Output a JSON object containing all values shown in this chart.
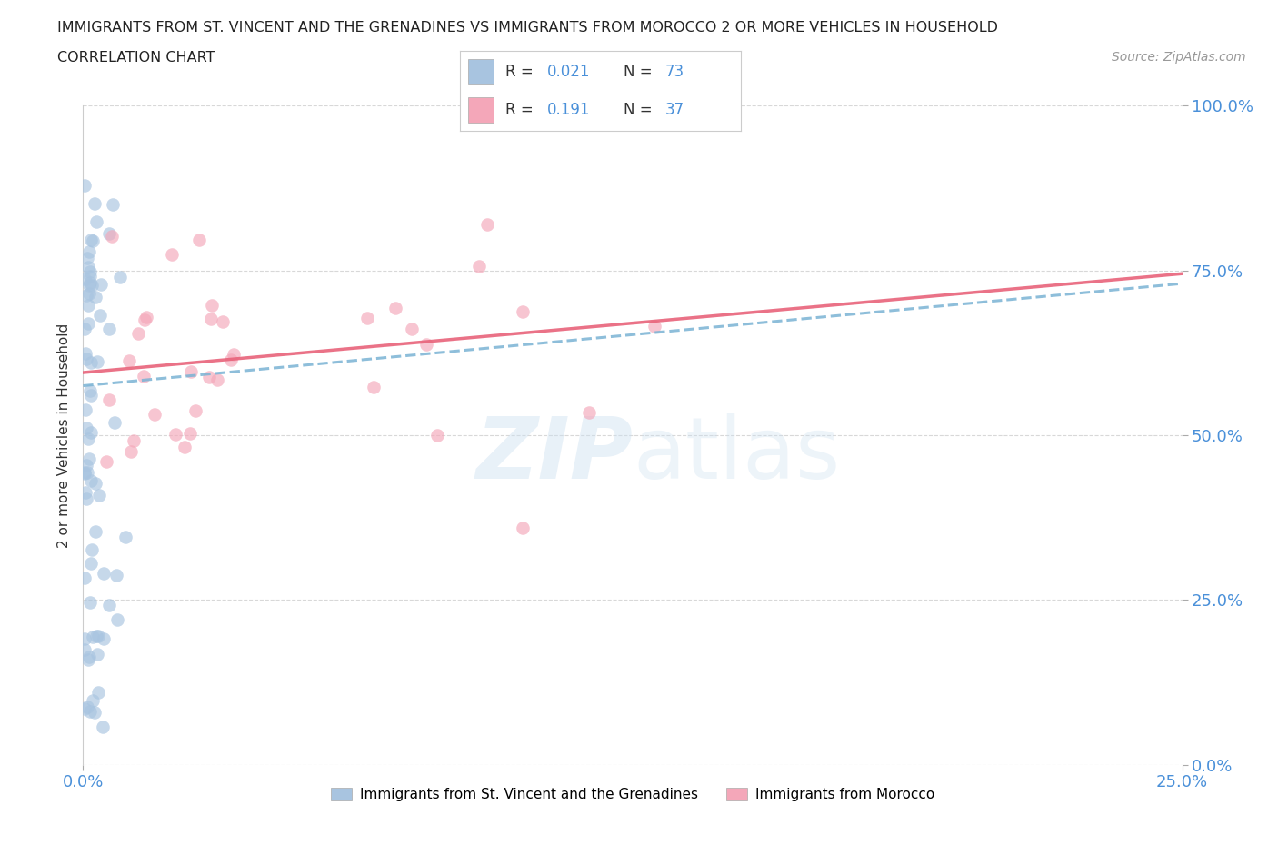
{
  "title_line1": "IMMIGRANTS FROM ST. VINCENT AND THE GRENADINES VS IMMIGRANTS FROM MOROCCO 2 OR MORE VEHICLES IN HOUSEHOLD",
  "title_line2": "CORRELATION CHART",
  "source_text": "Source: ZipAtlas.com",
  "ylabel": "2 or more Vehicles in Household",
  "xlim": [
    0.0,
    0.25
  ],
  "ylim": [
    0.0,
    1.0
  ],
  "xtick_labels": [
    "0.0%",
    "25.0%"
  ],
  "ytick_labels": [
    "0.0%",
    "25.0%",
    "50.0%",
    "75.0%",
    "100.0%"
  ],
  "ytick_positions": [
    0.0,
    0.25,
    0.5,
    0.75,
    1.0
  ],
  "xtick_positions": [
    0.0,
    0.25
  ],
  "legend_label1": "Immigrants from St. Vincent and the Grenadines",
  "legend_label2": "Immigrants from Morocco",
  "R1": "0.021",
  "N1": "73",
  "R2": "0.191",
  "N2": "37",
  "color1": "#a8c4e0",
  "color2": "#f4a7b9",
  "trendline1_color": "#7ab3d4",
  "trendline2_color": "#e8637a",
  "blue_text_color": "#4a90d9",
  "background_color": "#ffffff",
  "grid_color": "#d8d8d8",
  "trendline1_y0": 0.575,
  "trendline1_y1": 0.73,
  "trendline2_y0": 0.595,
  "trendline2_y1": 0.745
}
